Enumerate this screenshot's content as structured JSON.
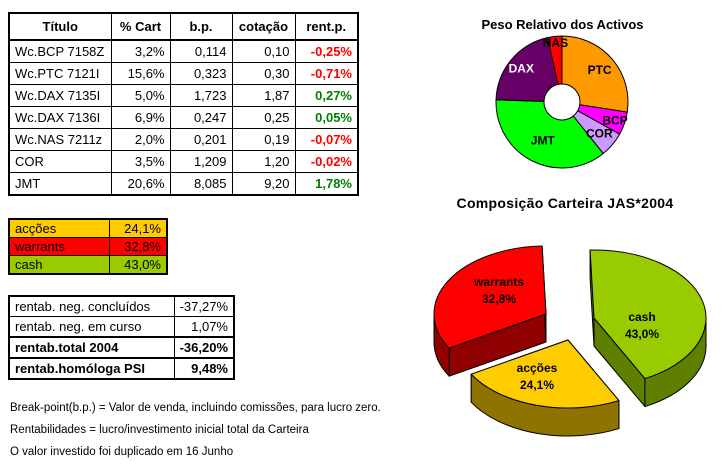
{
  "main_table": {
    "headers": [
      "Título",
      "% Cart",
      "b.p.",
      "cotação",
      "rent.p."
    ],
    "rows": [
      {
        "titulo": "Wc.BCP 7158Z",
        "pct": "3,2%",
        "bp": "0,114",
        "cotacao": "0,10",
        "rent": "-0,25%"
      },
      {
        "titulo": "Wc.PTC 7121I",
        "pct": "15,6%",
        "bp": "0,323",
        "cotacao": "0,30",
        "rent": "-0,71%"
      },
      {
        "titulo": "Wc.DAX 7135I",
        "pct": "5,0%",
        "bp": "1,723",
        "cotacao": "1,87",
        "rent": "0,27%"
      },
      {
        "titulo": "Wc.DAX 7136I",
        "pct": "6,9%",
        "bp": "0,247",
        "cotacao": "0,25",
        "rent": "0,05%"
      },
      {
        "titulo": "Wc.NAS 7211z",
        "pct": "2,0%",
        "bp": "0,201",
        "cotacao": "0,19",
        "rent": "-0,07%"
      },
      {
        "titulo": "COR",
        "pct": "3,5%",
        "bp": "1,209",
        "cotacao": "1,20",
        "rent": "-0,02%"
      },
      {
        "titulo": "JMT",
        "pct": "20,6%",
        "bp": "8,085",
        "cotacao": "9,20",
        "rent": "1,78%"
      }
    ]
  },
  "allocation_table": {
    "rows": [
      {
        "label": "acções",
        "value": "24,1%",
        "bg": "#FFCC00"
      },
      {
        "label": "warrants",
        "value": "32,8%",
        "bg": "#FF0000"
      },
      {
        "label": "cash",
        "value": "43,0%",
        "bg": "#99CC00"
      }
    ]
  },
  "returns_table": {
    "rows": [
      {
        "label": "rentab. neg. concluídos",
        "value": "-37,27%",
        "bold": false
      },
      {
        "label": "rentab. neg. em curso",
        "value": "1,07%",
        "bold": false
      },
      {
        "label": "rentab.total 2004",
        "value": "-36,20%",
        "bold": true
      },
      {
        "label": "rentab.homóloga PSI",
        "value": "9,48%",
        "bold": true
      }
    ]
  },
  "notes": [
    "Break-point(b.p.) = Valor de venda, incluindo comissões, para lucro zero.",
    "Rentabilidades = lucro/investimento inicial total da Carteira",
    "O valor investido foi duplicado em 16 Junho"
  ],
  "colors": {
    "negative": "#FF0000",
    "positive": "#008000"
  },
  "chart_data": [
    {
      "type": "pie",
      "subtype": "donut",
      "title": "Peso Relativo dos Activos",
      "legend_position": "none",
      "start_angle_deg": 0,
      "note": "slice values are portfolio weights (%) renormalized to the invested total",
      "slices": [
        {
          "label": "PTC",
          "value": 15.6,
          "color": "#FF9900",
          "label_color": "#000000",
          "label_r": 0.75
        },
        {
          "label": "BCP",
          "value": 3.2,
          "color": "#FF00FF",
          "label_color": "#000000",
          "label_r": 0.85
        },
        {
          "label": "COR",
          "value": 3.5,
          "color": "#CC99FF",
          "label_color": "#000000",
          "label_r": 0.74
        },
        {
          "label": "JMT",
          "value": 20.6,
          "color": "#00FF00",
          "label_color": "#000000",
          "label_r": 0.65
        },
        {
          "label": "DAX",
          "value": 11.9,
          "color": "#660066",
          "label_color": "#FFFFFF",
          "label_r": 0.8
        },
        {
          "label": "NAS",
          "value": 2.0,
          "color": "#FF0000",
          "label_color": "#000000",
          "label_r": 0.9
        }
      ]
    },
    {
      "type": "pie",
      "subtype": "pie3d-exploded",
      "title": "Composição Carteira JAS*2004",
      "legend_position": "none",
      "start_angle_deg": -2,
      "slices": [
        {
          "label": "cash",
          "pct_text": "43,0%",
          "value": 43.0,
          "color": "#99CC00",
          "side_color": "#5F7F00",
          "explode": [
            24,
            -10
          ],
          "label_pos": [
            232,
            100
          ]
        },
        {
          "label": "acções",
          "pct_text": "24,1%",
          "value": 24.1,
          "color": "#FFCC00",
          "side_color": "#8F7300",
          "explode": [
            -2,
            12
          ],
          "label_pos": [
            127,
            151
          ]
        },
        {
          "label": "warrants",
          "pct_text": "32,8%",
          "value": 32.8,
          "color": "#FF0000",
          "side_color": "#900000",
          "explode": [
            -24,
            -14
          ],
          "label_pos": [
            89,
            65
          ]
        }
      ]
    }
  ]
}
